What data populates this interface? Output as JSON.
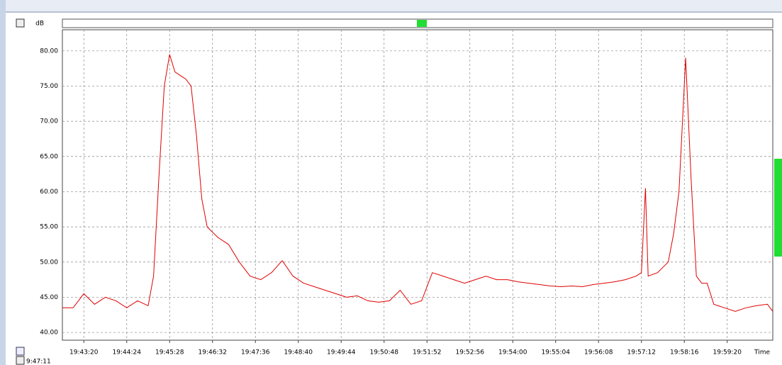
{
  "chart_data": {
    "type": "line",
    "y_label": "dB",
    "x_label": "Time",
    "status_time": "9:47:11",
    "color": "#e00000",
    "grid": true,
    "xlim": [
      "19:42:48",
      "20:00:28"
    ],
    "xticks": [
      "19:43:20",
      "19:44:24",
      "19:45:28",
      "19:46:32",
      "19:47:36",
      "19:48:40",
      "19:49:44",
      "19:50:48",
      "19:51:52",
      "19:52:56",
      "19:54:00",
      "19:55:04",
      "19:56:08",
      "19:57:12",
      "19:58:16",
      "19:59:20"
    ],
    "ylim": [
      38.9,
      83
    ],
    "yticks": [
      {
        "value": 40,
        "label": "40.00"
      },
      {
        "value": 45,
        "label": "45.00"
      },
      {
        "value": 50,
        "label": "50.00"
      },
      {
        "value": 55,
        "label": "55.00"
      },
      {
        "value": 60,
        "label": "60.00"
      },
      {
        "value": 65,
        "label": "65.00"
      },
      {
        "value": 70,
        "label": "70.00"
      },
      {
        "value": 75,
        "label": "75.00"
      },
      {
        "value": 80,
        "label": "80.00"
      }
    ],
    "x": [
      "19:42:48",
      "19:43:04",
      "19:43:20",
      "19:43:36",
      "19:43:52",
      "19:44:08",
      "19:44:24",
      "19:44:40",
      "19:44:56",
      "19:45:04",
      "19:45:12",
      "19:45:20",
      "19:45:28",
      "19:45:36",
      "19:45:44",
      "19:45:52",
      "19:46:00",
      "19:46:08",
      "19:46:16",
      "19:46:24",
      "19:46:40",
      "19:46:56",
      "19:47:12",
      "19:47:28",
      "19:47:44",
      "19:48:00",
      "19:48:16",
      "19:48:32",
      "19:48:48",
      "19:49:04",
      "19:49:20",
      "19:49:36",
      "19:49:52",
      "19:50:08",
      "19:50:24",
      "19:50:40",
      "19:50:56",
      "19:51:12",
      "19:51:28",
      "19:51:44",
      "19:52:00",
      "19:52:16",
      "19:52:32",
      "19:52:48",
      "19:53:04",
      "19:53:20",
      "19:53:36",
      "19:53:52",
      "19:54:08",
      "19:54:24",
      "19:54:40",
      "19:54:56",
      "19:55:12",
      "19:55:28",
      "19:55:44",
      "19:56:00",
      "19:56:16",
      "19:56:32",
      "19:56:48",
      "19:57:04",
      "19:57:12",
      "19:57:18",
      "19:57:22",
      "19:57:36",
      "19:57:52",
      "19:58:00",
      "19:58:08",
      "19:58:18",
      "19:58:26",
      "19:58:34",
      "19:58:42",
      "19:58:50",
      "19:59:00",
      "19:59:16",
      "19:59:32",
      "19:59:48",
      "20:00:04",
      "20:00:20",
      "20:00:28"
    ],
    "values": [
      43.5,
      43.5,
      45.5,
      44,
      45,
      44.5,
      43.5,
      44.5,
      43.8,
      48,
      62,
      75,
      79.5,
      77,
      76.5,
      76,
      75,
      68,
      59,
      55,
      53.5,
      52.5,
      50,
      48,
      47.5,
      48.5,
      50.2,
      48,
      47,
      46.5,
      46,
      45.5,
      45,
      45.2,
      44.5,
      44.3,
      44.5,
      46,
      44,
      44.5,
      48.5,
      48,
      47.5,
      47,
      47.5,
      48,
      47.5,
      47.5,
      47.2,
      47,
      46.8,
      46.6,
      46.5,
      46.6,
      46.5,
      46.8,
      47,
      47.2,
      47.5,
      48,
      48.5,
      60.5,
      48,
      48.5,
      50,
      54,
      60,
      79,
      62,
      48,
      47,
      47,
      44,
      43.5,
      43,
      43.5,
      43.8,
      44,
      43
    ]
  }
}
